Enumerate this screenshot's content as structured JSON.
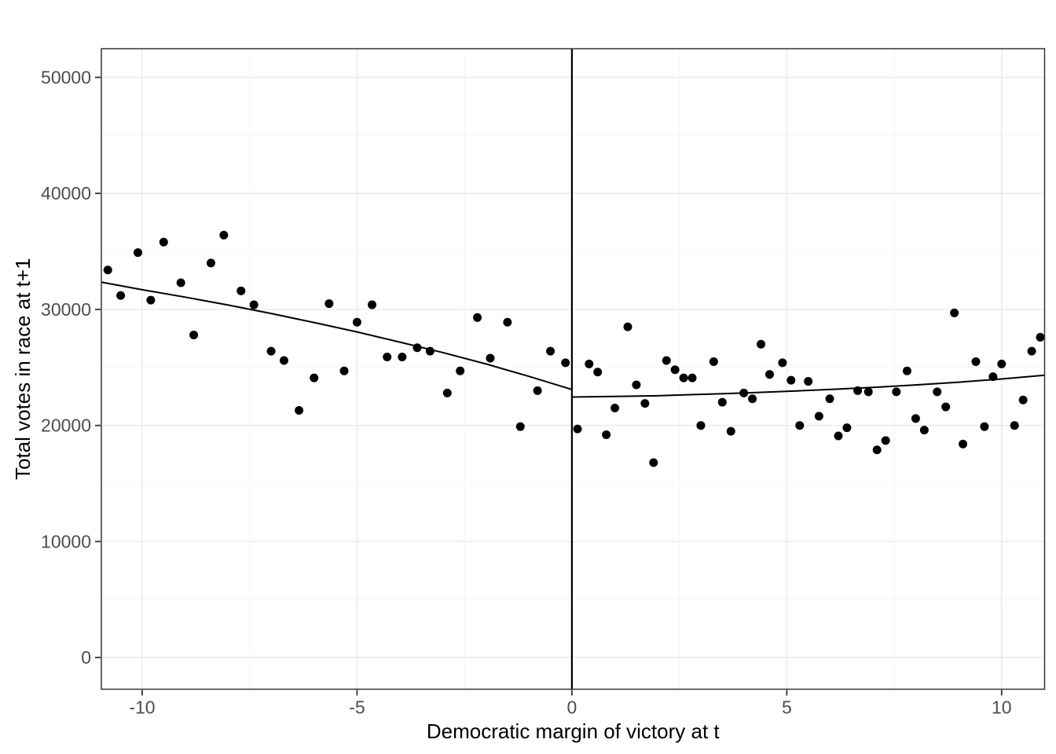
{
  "figure": {
    "background": "#FFFFFF"
  },
  "chart_data": {
    "type": "scatter",
    "title": "",
    "xlabel": "Democratic margin of victory at t",
    "ylabel": "Total votes in race at t+1",
    "xlim": [
      -10.95,
      11.0
    ],
    "ylim": [
      -2730,
      52470
    ],
    "x_major_ticks": [
      -10,
      -5,
      0,
      5,
      10
    ],
    "x_tick_labels": [
      "-10",
      "-5",
      "0",
      "5",
      "10"
    ],
    "x_minor_ticks": [
      -7.5,
      -2.5,
      2.5,
      7.5
    ],
    "y_major_ticks": [
      0,
      10000,
      20000,
      30000,
      40000,
      50000
    ],
    "y_tick_labels": [
      "0",
      "10000",
      "20000",
      "30000",
      "40000",
      "50000"
    ],
    "y_minor_ticks": [
      5000,
      15000,
      25000,
      35000,
      45000
    ],
    "grid": "major+minor",
    "legend": "none",
    "cutoff_x": 0,
    "colors": {
      "point": "#000000",
      "trend_line": "#000000",
      "cutoff_line": "#000000",
      "grid_major": "#EBEBEB",
      "grid_minor": "#F6F6F6",
      "panel_border": "#333333",
      "tick_mark": "#333333",
      "tick_label": "#4D4D4D",
      "axis_title": "#000000",
      "background": "#FFFFFF"
    },
    "series": [
      {
        "name": "left_of_cutoff",
        "points": [
          [
            -10.8,
            33400
          ],
          [
            -10.5,
            31200
          ],
          [
            -10.1,
            34900
          ],
          [
            -9.8,
            30800
          ],
          [
            -9.5,
            35800
          ],
          [
            -9.1,
            32300
          ],
          [
            -8.8,
            27800
          ],
          [
            -8.4,
            34000
          ],
          [
            -8.1,
            36400
          ],
          [
            -7.7,
            31600
          ],
          [
            -7.4,
            30400
          ],
          [
            -7.0,
            26400
          ],
          [
            -6.7,
            25600
          ],
          [
            -6.35,
            21300
          ],
          [
            -6.0,
            24100
          ],
          [
            -5.65,
            30500
          ],
          [
            -5.3,
            24700
          ],
          [
            -5.0,
            28900
          ],
          [
            -4.65,
            30400
          ],
          [
            -4.3,
            25900
          ],
          [
            -3.95,
            25900
          ],
          [
            -3.6,
            26700
          ],
          [
            -3.3,
            26400
          ],
          [
            -2.9,
            22800
          ],
          [
            -2.6,
            24700
          ],
          [
            -2.2,
            29300
          ],
          [
            -1.9,
            25800
          ],
          [
            -1.5,
            28900
          ],
          [
            -1.2,
            19900
          ],
          [
            -0.8,
            23000
          ],
          [
            -0.5,
            26400
          ],
          [
            -0.15,
            25400
          ]
        ]
      },
      {
        "name": "right_of_cutoff",
        "points": [
          [
            0.13,
            19700
          ],
          [
            0.4,
            25300
          ],
          [
            0.6,
            24600
          ],
          [
            0.8,
            19200
          ],
          [
            1.0,
            21500
          ],
          [
            1.3,
            28500
          ],
          [
            1.5,
            23500
          ],
          [
            1.7,
            21900
          ],
          [
            1.9,
            16800
          ],
          [
            2.2,
            25600
          ],
          [
            2.4,
            24800
          ],
          [
            2.6,
            24100
          ],
          [
            2.8,
            24100
          ],
          [
            3.0,
            20000
          ],
          [
            3.3,
            25500
          ],
          [
            3.5,
            22000
          ],
          [
            3.7,
            19500
          ],
          [
            4.0,
            22800
          ],
          [
            4.2,
            22300
          ],
          [
            4.4,
            27000
          ],
          [
            4.6,
            24400
          ],
          [
            4.9,
            25400
          ],
          [
            5.1,
            23900
          ],
          [
            5.3,
            20000
          ],
          [
            5.5,
            23800
          ],
          [
            5.75,
            20800
          ],
          [
            6.0,
            22300
          ],
          [
            6.2,
            19100
          ],
          [
            6.4,
            19800
          ],
          [
            6.65,
            23000
          ],
          [
            6.9,
            22900
          ],
          [
            7.1,
            17900
          ],
          [
            7.3,
            18700
          ],
          [
            7.55,
            22900
          ],
          [
            7.8,
            24700
          ],
          [
            8.0,
            20600
          ],
          [
            8.2,
            19600
          ],
          [
            8.5,
            22900
          ],
          [
            8.7,
            21600
          ],
          [
            8.9,
            29700
          ],
          [
            9.1,
            18400
          ],
          [
            9.4,
            25500
          ],
          [
            9.6,
            19900
          ],
          [
            9.8,
            24200
          ],
          [
            10.0,
            25300
          ],
          [
            10.3,
            20000
          ],
          [
            10.5,
            22200
          ],
          [
            10.7,
            26400
          ],
          [
            10.9,
            27600
          ]
        ]
      }
    ],
    "trend_lines": [
      {
        "name": "fit_left_of_cutoff",
        "points": [
          [
            -10.95,
            32350
          ],
          [
            -10,
            31700
          ],
          [
            -9,
            31060
          ],
          [
            -8,
            30380
          ],
          [
            -7,
            29650
          ],
          [
            -6,
            28870
          ],
          [
            -5,
            28060
          ],
          [
            -4,
            27180
          ],
          [
            -3,
            26280
          ],
          [
            -2,
            25300
          ],
          [
            -1,
            24230
          ],
          [
            0,
            23100
          ]
        ]
      },
      {
        "name": "fit_right_of_cutoff",
        "points": [
          [
            0,
            22450
          ],
          [
            1,
            22500
          ],
          [
            2,
            22560
          ],
          [
            3,
            22680
          ],
          [
            4,
            22800
          ],
          [
            5,
            22940
          ],
          [
            6,
            23100
          ],
          [
            7,
            23280
          ],
          [
            8,
            23490
          ],
          [
            9,
            23730
          ],
          [
            10,
            24010
          ],
          [
            11,
            24330
          ]
        ]
      }
    ]
  }
}
